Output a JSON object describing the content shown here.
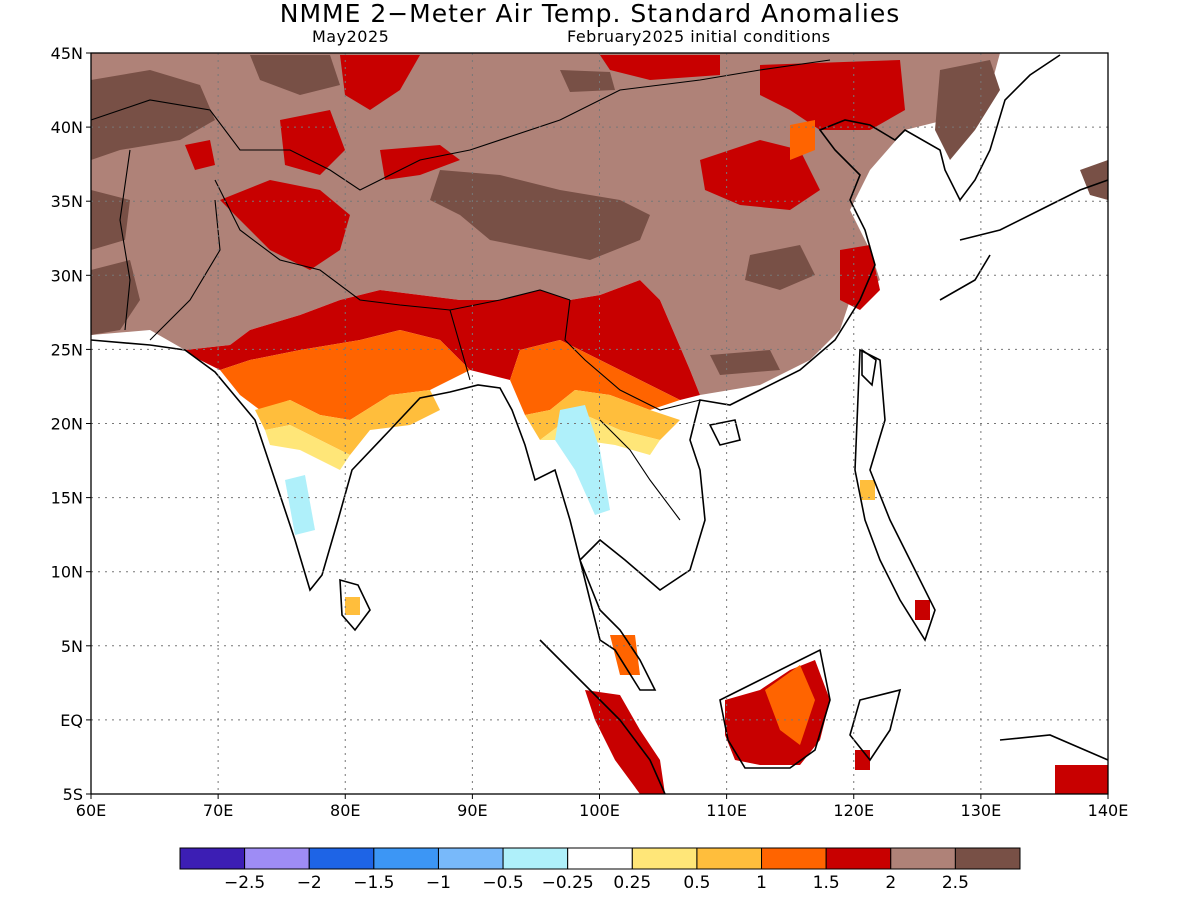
{
  "title": "NMME 2−Meter Air Temp. Standard Anomalies",
  "subtitle_left": "May2025",
  "subtitle_right": "February2025 initial conditions",
  "map": {
    "lon_range": [
      60,
      140
    ],
    "lat_range": [
      -5,
      45
    ],
    "lon_ticks": [
      "60E",
      "70E",
      "80E",
      "90E",
      "100E",
      "110E",
      "120E",
      "130E",
      "140E"
    ],
    "lat_ticks": [
      "45N",
      "40N",
      "35N",
      "30N",
      "25N",
      "20N",
      "15N",
      "10N",
      "5N",
      "EQ",
      "5S"
    ],
    "grid": true
  },
  "colorbar": {
    "colors": [
      "#3c1eb4",
      "#9e8cf5",
      "#1e64e6",
      "#3c96f5",
      "#78b9fa",
      "#aff0fa",
      "#ffffff",
      "#ffe678",
      "#ffbe3c",
      "#ff6400",
      "#c80000",
      "#af8278",
      "#785046"
    ],
    "labels": [
      "−2.5",
      "−2",
      "−1.5",
      "−1",
      "−0.5",
      "−0.25",
      "0.25",
      "0.5",
      "1",
      "1.5",
      "2",
      "2.5"
    ]
  }
}
